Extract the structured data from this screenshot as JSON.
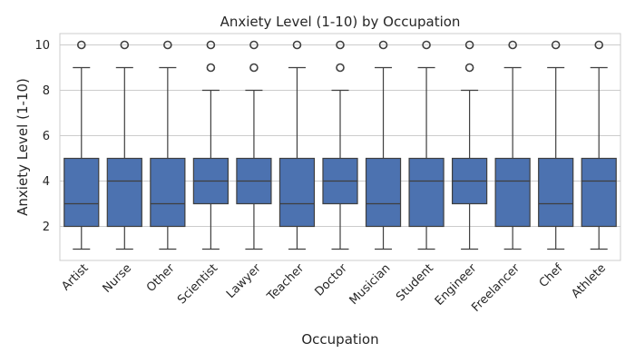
{
  "chart_data": {
    "type": "box",
    "title": "Anxiety Level (1-10) by Occupation",
    "xlabel": "Occupation",
    "ylabel": "Anxiety Level (1-10)",
    "ylim": [
      0.5,
      10.5
    ],
    "yticks": [
      2,
      4,
      6,
      8,
      10
    ],
    "grid": true,
    "color": "#4c72b0",
    "categories": [
      "Artist",
      "Nurse",
      "Other",
      "Scientist",
      "Lawyer",
      "Teacher",
      "Doctor",
      "Musician",
      "Student",
      "Engineer",
      "Freelancer",
      "Chef",
      "Athlete"
    ],
    "boxes": [
      {
        "whisker_low": 1,
        "q1": 2,
        "median": 3,
        "q3": 5,
        "whisker_high": 9,
        "outliers": [
          10
        ]
      },
      {
        "whisker_low": 1,
        "q1": 2,
        "median": 4,
        "q3": 5,
        "whisker_high": 9,
        "outliers": [
          10
        ]
      },
      {
        "whisker_low": 1,
        "q1": 2,
        "median": 3,
        "q3": 5,
        "whisker_high": 9,
        "outliers": [
          10
        ]
      },
      {
        "whisker_low": 1,
        "q1": 3,
        "median": 4,
        "q3": 5,
        "whisker_high": 8,
        "outliers": [
          9,
          10
        ]
      },
      {
        "whisker_low": 1,
        "q1": 3,
        "median": 4,
        "q3": 5,
        "whisker_high": 8,
        "outliers": [
          9,
          10
        ]
      },
      {
        "whisker_low": 1,
        "q1": 2,
        "median": 3,
        "q3": 5,
        "whisker_high": 9,
        "outliers": [
          10
        ]
      },
      {
        "whisker_low": 1,
        "q1": 3,
        "median": 4,
        "q3": 5,
        "whisker_high": 8,
        "outliers": [
          9,
          10
        ]
      },
      {
        "whisker_low": 1,
        "q1": 2,
        "median": 3,
        "q3": 5,
        "whisker_high": 9,
        "outliers": [
          10
        ]
      },
      {
        "whisker_low": 1,
        "q1": 2,
        "median": 4,
        "q3": 5,
        "whisker_high": 9,
        "outliers": [
          10
        ]
      },
      {
        "whisker_low": 1,
        "q1": 3,
        "median": 4,
        "q3": 5,
        "whisker_high": 8,
        "outliers": [
          9,
          10
        ]
      },
      {
        "whisker_low": 1,
        "q1": 2,
        "median": 4,
        "q3": 5,
        "whisker_high": 9,
        "outliers": [
          10
        ]
      },
      {
        "whisker_low": 1,
        "q1": 2,
        "median": 3,
        "q3": 5,
        "whisker_high": 9,
        "outliers": [
          10
        ]
      },
      {
        "whisker_low": 1,
        "q1": 2,
        "median": 4,
        "q3": 5,
        "whisker_high": 9,
        "outliers": [
          10
        ]
      }
    ]
  }
}
